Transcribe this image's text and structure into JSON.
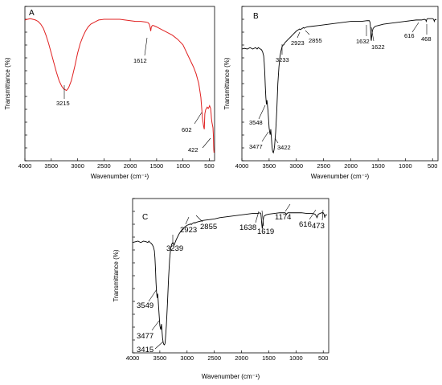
{
  "chart_data": [
    {
      "id": "A",
      "type": "line",
      "panel_label": "A",
      "xlabel": "Wavenumber (cm⁻¹)",
      "ylabel": "Transmittance (%)",
      "xlim": [
        4000,
        400
      ],
      "ylim": [
        0,
        100
      ],
      "x_ticks": [
        4000,
        3500,
        3000,
        2500,
        2000,
        1500,
        1000,
        500
      ],
      "y_ticks_count": 12,
      "series": [
        {
          "color": "#e02020",
          "x": [
            4000,
            3900,
            3800,
            3750,
            3700,
            3650,
            3600,
            3550,
            3500,
            3450,
            3400,
            3350,
            3300,
            3260,
            3230,
            3215,
            3200,
            3170,
            3150,
            3120,
            3100,
            3050,
            3000,
            2950,
            2900,
            2850,
            2800,
            2750,
            2700,
            2650,
            2600,
            2500,
            2400,
            2300,
            2200,
            2100,
            2000,
            1900,
            1800,
            1700,
            1660,
            1640,
            1625,
            1612,
            1600,
            1580,
            1560,
            1500,
            1400,
            1300,
            1200,
            1100,
            1000,
            950,
            900,
            850,
            800,
            750,
            700,
            660,
            630,
            612,
            602,
            595,
            585,
            570,
            555,
            540,
            520,
            505,
            495,
            485,
            475,
            470,
            465,
            460,
            450,
            440,
            430,
            422,
            418,
            415,
            410
          ],
          "y": [
            96,
            97,
            96,
            95,
            93,
            90,
            85,
            79,
            72,
            65,
            58,
            52,
            48,
            46,
            45.5,
            45,
            45.5,
            47,
            49,
            52,
            55,
            63,
            72,
            79,
            84,
            88,
            91,
            93,
            94,
            95,
            96,
            96.5,
            96.5,
            96.5,
            96.5,
            96,
            95.5,
            95,
            95,
            94.5,
            94,
            93,
            91,
            88,
            91,
            92,
            92,
            91,
            89,
            87,
            85,
            82,
            78,
            74,
            70,
            66,
            62,
            57,
            50,
            40,
            25,
            20,
            18,
            17,
            28,
            31,
            32,
            33,
            32,
            33,
            34,
            33,
            32,
            30,
            28,
            25,
            22,
            20,
            18,
            12,
            5,
            2,
            0
          ]
        }
      ],
      "annotations": [
        "3215",
        "1612",
        "602",
        "422"
      ]
    },
    {
      "id": "B",
      "type": "line",
      "panel_label": "B",
      "xlabel": "Wavenumber (cm⁻¹)",
      "ylabel": "Transmittance (%)",
      "xlim": [
        4000,
        400
      ],
      "ylim": [
        0,
        100
      ],
      "x_ticks": [
        4000,
        3500,
        3000,
        2500,
        2000,
        1500,
        1000,
        500
      ],
      "y_ticks_count": 12,
      "series": [
        {
          "color": "#000000",
          "x": [
            4000,
            3950,
            3900,
            3850,
            3800,
            3750,
            3720,
            3700,
            3680,
            3660,
            3640,
            3620,
            3600,
            3590,
            3580,
            3570,
            3560,
            3550,
            3545,
            3540,
            3530,
            3520,
            3510,
            3500,
            3490,
            3480,
            3475,
            3470,
            3460,
            3450,
            3440,
            3430,
            3422,
            3410,
            3400,
            3380,
            3360,
            3340,
            3320,
            3300,
            3280,
            3260,
            3240,
            3230,
            3220,
            3200,
            3150,
            3100,
            3050,
            3000,
            2960,
            2940,
            2923,
            2910,
            2890,
            2870,
            2855,
            2840,
            2800,
            2700,
            2600,
            2500,
            2400,
            2300,
            2200,
            2100,
            2000,
            1900,
            1800,
            1700,
            1660,
            1645,
            1635,
            1632,
            1628,
            1624,
            1622,
            1615,
            1605,
            1590,
            1550,
            1500,
            1400,
            1300,
            1200,
            1100,
            1000,
            900,
            800,
            700,
            650,
            625,
            616,
            605,
            590,
            560,
            530,
            500,
            480,
            468,
            460,
            445,
            430
          ],
          "y": [
            75,
            75.5,
            75,
            76,
            75,
            76,
            75,
            76,
            75.5,
            75,
            74.5,
            73,
            70,
            65,
            58,
            48,
            40,
            35,
            36,
            38,
            34,
            30,
            24,
            18,
            15,
            13,
            15,
            17,
            12,
            6,
            2,
            0.5,
            0,
            2,
            5,
            15,
            30,
            50,
            62,
            70,
            74,
            77,
            78,
            78,
            79,
            80,
            82,
            84,
            86,
            88,
            89,
            89.5,
            89,
            89.5,
            90,
            90.5,
            90,
            90.5,
            91,
            91.5,
            92,
            92.5,
            93,
            93.5,
            94,
            94.5,
            95,
            95,
            95,
            95.5,
            95.5,
            94,
            88,
            85,
            82,
            81,
            82,
            85,
            88,
            90,
            91.5,
            92,
            93,
            93.5,
            94,
            94.5,
            95,
            95.5,
            96,
            96,
            96.5,
            96,
            95,
            96.5,
            97,
            97,
            97,
            97,
            96.5,
            95,
            96,
            96.5,
            96
          ]
        }
      ],
      "annotations": [
        "3548",
        "3477",
        "3422",
        "3233",
        "2923",
        "2855",
        "1632",
        "1622",
        "616",
        "468"
      ]
    },
    {
      "id": "C",
      "type": "line",
      "panel_label": "C",
      "xlabel": "Wavenumber (cm⁻¹)",
      "ylabel": "Transmittance (%)",
      "xlim": [
        4000,
        400
      ],
      "ylim": [
        0,
        100
      ],
      "x_ticks": [
        4000,
        3500,
        3000,
        2500,
        2000,
        1500,
        1000,
        500
      ],
      "y_ticks_count": 12,
      "series": [
        {
          "color": "#000000",
          "x": [
            4000,
            3950,
            3900,
            3850,
            3800,
            3750,
            3720,
            3700,
            3680,
            3660,
            3640,
            3620,
            3600,
            3590,
            3580,
            3570,
            3560,
            3549,
            3545,
            3540,
            3530,
            3520,
            3510,
            3500,
            3490,
            3480,
            3477,
            3470,
            3460,
            3450,
            3440,
            3430,
            3415,
            3405,
            3400,
            3380,
            3360,
            3340,
            3320,
            3300,
            3280,
            3260,
            3250,
            3239,
            3230,
            3200,
            3150,
            3100,
            3050,
            3000,
            2960,
            2940,
            2923,
            2910,
            2890,
            2870,
            2855,
            2840,
            2800,
            2700,
            2600,
            2500,
            2400,
            2300,
            2200,
            2100,
            2000,
            1900,
            1800,
            1700,
            1660,
            1645,
            1638,
            1630,
            1625,
            1619,
            1612,
            1605,
            1590,
            1550,
            1500,
            1400,
            1300,
            1200,
            1174,
            1150,
            1100,
            1000,
            900,
            800,
            700,
            650,
            625,
            616,
            605,
            590,
            560,
            530,
            500,
            480,
            473,
            465,
            450,
            430
          ],
          "y": [
            74,
            74.5,
            75,
            74,
            75,
            74.5,
            74,
            75,
            74,
            73.5,
            72.5,
            71,
            68,
            63,
            55,
            45,
            38,
            34,
            35,
            37,
            32,
            26,
            20,
            14,
            12,
            11,
            13,
            15,
            10,
            5,
            2,
            0.5,
            0,
            1,
            3,
            14,
            30,
            48,
            62,
            70,
            73,
            74,
            73,
            72,
            73,
            76,
            80,
            83,
            85,
            86.5,
            87,
            87.5,
            87,
            87.5,
            88,
            88.5,
            88,
            88.5,
            89,
            90,
            90.5,
            91,
            92,
            92.5,
            93,
            93.5,
            94,
            94.5,
            95,
            95,
            95.5,
            95,
            92,
            88,
            86,
            84,
            86,
            90,
            93,
            94,
            94.5,
            95,
            95.5,
            95.5,
            94.5,
            95.5,
            95.5,
            95.5,
            95.5,
            95,
            95,
            94.5,
            93,
            92,
            93,
            94.5,
            95,
            95.5,
            95.5,
            94,
            92,
            93.5,
            94,
            94
          ]
        }
      ],
      "annotations": [
        "3549",
        "3477",
        "3415",
        "3239",
        "2923",
        "2855",
        "1638",
        "1619",
        "1174",
        "616",
        "473"
      ]
    }
  ]
}
